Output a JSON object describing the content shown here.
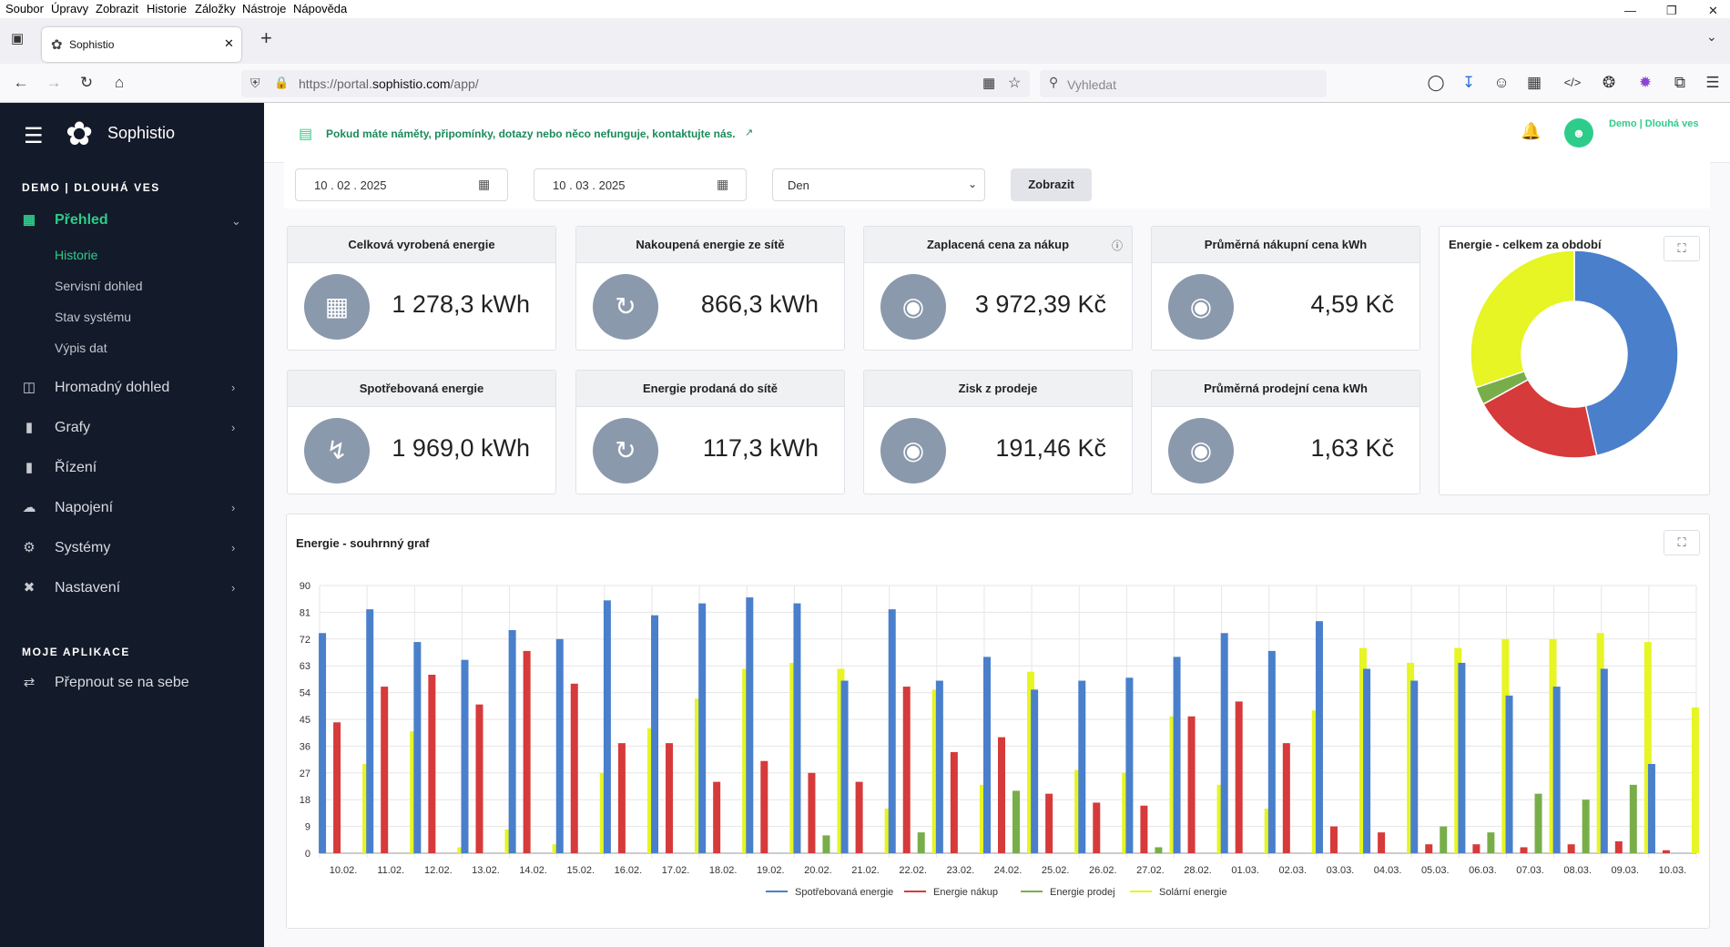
{
  "browser": {
    "menu": [
      "Soubor",
      "Úpravy",
      "Zobrazit",
      "Historie",
      "Záložky",
      "Nástroje",
      "Nápověda"
    ],
    "tab_title": "Sophistio",
    "url_prefix": "https://portal.",
    "url_host": "sophistio.com",
    "url_path": "/app/",
    "search_placeholder": "Vyhledat"
  },
  "sidebar": {
    "brand": "Sophistio",
    "section1": "DEMO | DLOUHÁ VES",
    "overview": "Přehled",
    "sub": [
      "Historie",
      "Servisní dohled",
      "Stav systému",
      "Výpis dat"
    ],
    "items": [
      "Hromadný dohled",
      "Grafy",
      "Řízení",
      "Napojení",
      "Systémy",
      "Nastavení"
    ],
    "section2": "MOJE APLIKACE",
    "switch": "Přepnout se na sebe"
  },
  "header": {
    "notice": "Pokud máte náměty, připomínky, dotazy nebo něco nefunguje, kontaktujte nás.",
    "user": "Demo | Dlouhá ves"
  },
  "filters": {
    "date_from": "10 . 02 . 2025",
    "date_to": "10 . 03 . 2025",
    "period": "Den",
    "button": "Zobrazit"
  },
  "cards": [
    {
      "title": "Celková vyrobená energie",
      "value": "1 278,3 kWh",
      "icon": "solar-panel-icon"
    },
    {
      "title": "Nakoupená energie ze sítě",
      "value": "866,3 kWh",
      "icon": "grid-energy-icon"
    },
    {
      "title": "Zaplacená cena za nákup",
      "value": "3 972,39 Kč",
      "icon": "coins-icon"
    },
    {
      "title": "Průměrná nákupní cena kWh",
      "value": "4,59 Kč",
      "icon": "coins-icon"
    },
    {
      "title": "Spotřebovaná energie",
      "value": "1 969,0 kWh",
      "icon": "bolt-icon"
    },
    {
      "title": "Energie prodaná do sítě",
      "value": "117,3 kWh",
      "icon": "grid-energy-icon"
    },
    {
      "title": "Zisk z prodeje",
      "value": "191,46 Kč",
      "icon": "coins-icon"
    },
    {
      "title": "Průměrná prodejní cena kWh",
      "value": "1,63 Kč",
      "icon": "coins-icon"
    }
  ],
  "colors": {
    "blue": "#4a7fcb",
    "red": "#d63a3a",
    "green": "#78ae4a",
    "yellow": "#e6f523",
    "sidebar": "#131a29",
    "accent": "#2ecc8a"
  },
  "chart_data": [
    {
      "type": "pie",
      "title": "Energie - celkem za období",
      "labels": [
        "Spotřebovaná energie",
        "Energie nákup",
        "Energie prodej",
        "Solární energie"
      ],
      "values": [
        1969.0,
        866.3,
        117.3,
        1278.3
      ]
    },
    {
      "type": "bar",
      "title": "Energie - souhrnný graf",
      "categories": [
        "10.02.",
        "11.02.",
        "12.02.",
        "13.02.",
        "14.02.",
        "15.02.",
        "16.02.",
        "17.02.",
        "18.02.",
        "19.02.",
        "20.02.",
        "21.02.",
        "22.02.",
        "23.02.",
        "24.02.",
        "25.02.",
        "26.02.",
        "27.02.",
        "28.02.",
        "01.03.",
        "02.03.",
        "03.03.",
        "04.03.",
        "05.03.",
        "06.03.",
        "07.03.",
        "08.03.",
        "09.03.",
        "10.03."
      ],
      "yticks": [
        0,
        9,
        18,
        27,
        36,
        45,
        54,
        63,
        72,
        81,
        90
      ],
      "ylim": [
        0,
        90
      ],
      "series": [
        {
          "name": "Spotřebovaná energie",
          "values": [
            74,
            82,
            71,
            65,
            75,
            72,
            85,
            80,
            84,
            86,
            84,
            58,
            82,
            58,
            66,
            55,
            58,
            59,
            66,
            74,
            68,
            78,
            62,
            58,
            64,
            53,
            56,
            62,
            30
          ]
        },
        {
          "name": "Energie nákup",
          "values": [
            44,
            56,
            60,
            50,
            68,
            57,
            37,
            37,
            24,
            31,
            27,
            24,
            56,
            34,
            39,
            20,
            17,
            16,
            46,
            51,
            37,
            9,
            7,
            3,
            3,
            2,
            3,
            4,
            1
          ]
        },
        {
          "name": "Energie prodej",
          "values": [
            0,
            0,
            0,
            0,
            0,
            0,
            0,
            0,
            0,
            0,
            6,
            0,
            7,
            0,
            21,
            0,
            0,
            2,
            0,
            0,
            0,
            0,
            0,
            9,
            7,
            20,
            18,
            23,
            0
          ]
        },
        {
          "name": "Solární energie",
          "values": [
            30,
            41,
            2,
            8,
            3,
            27,
            42,
            52,
            62,
            64,
            62,
            15,
            55,
            23,
            61,
            28,
            27,
            46,
            23,
            15,
            48,
            69,
            64,
            69,
            72,
            72,
            74,
            71,
            49
          ]
        }
      ]
    }
  ]
}
